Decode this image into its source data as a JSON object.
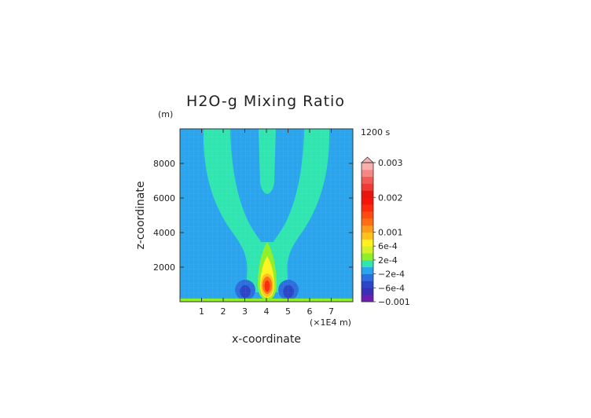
{
  "chart_data": {
    "type": "heatmap",
    "title": "H2O-g Mixing Ratio",
    "xlabel": "x-coordinate",
    "ylabel": "z-coordinate",
    "x_unit": "(×1E4 m)",
    "y_unit": "(m)",
    "time_label": "1200 s",
    "xlim": [
      0,
      8
    ],
    "ylim": [
      0,
      10000
    ],
    "x_ticks": [
      1,
      2,
      3,
      4,
      5,
      6,
      7
    ],
    "x_tick_labels": [
      "1",
      "2",
      "3",
      "4",
      "5",
      "6",
      "7"
    ],
    "y_ticks": [
      2000,
      4000,
      6000,
      8000
    ],
    "y_tick_labels": [
      "2000",
      "4000",
      "6000",
      "8000"
    ],
    "colorbar": {
      "min": -0.001,
      "max": 0.003,
      "extend": "max",
      "tick_values": [
        0.003,
        0.002,
        0.001,
        0.0006,
        0.0002,
        -0.0002,
        -0.0006,
        -0.001
      ],
      "tick_labels": [
        "0.003",
        "0.002",
        "0.001",
        "6e-4",
        "2e-4",
        "−2e-4",
        "−6e-4",
        "−0.001"
      ],
      "levels": [
        {
          "from": -0.001,
          "to": -0.0008,
          "color": "#6a1fb0"
        },
        {
          "from": -0.0008,
          "to": -0.0006,
          "color": "#3b2fb8"
        },
        {
          "from": -0.0006,
          "to": -0.0004,
          "color": "#2a45c8"
        },
        {
          "from": -0.0004,
          "to": -0.0002,
          "color": "#2b6fdc"
        },
        {
          "from": -0.0002,
          "to": 0.0,
          "color": "#2aa4ee"
        },
        {
          "from": 0.0,
          "to": 0.0002,
          "color": "#2fe6b0"
        },
        {
          "from": 0.0002,
          "to": 0.0004,
          "color": "#8ef02a"
        },
        {
          "from": 0.0004,
          "to": 0.0006,
          "color": "#d8f026"
        },
        {
          "from": 0.0006,
          "to": 0.0008,
          "color": "#fff21e"
        },
        {
          "from": 0.0008,
          "to": 0.001,
          "color": "#ffc21c"
        },
        {
          "from": 0.001,
          "to": 0.0012,
          "color": "#ff9a1a"
        },
        {
          "from": 0.0012,
          "to": 0.0014,
          "color": "#ff6e14"
        },
        {
          "from": 0.0014,
          "to": 0.0016,
          "color": "#ff4a10"
        },
        {
          "from": 0.0016,
          "to": 0.0018,
          "color": "#ff2a0c"
        },
        {
          "from": 0.0018,
          "to": 0.002,
          "color": "#f5140a"
        },
        {
          "from": 0.002,
          "to": 0.0022,
          "color": "#e8140e"
        },
        {
          "from": 0.0022,
          "to": 0.0024,
          "color": "#f03a36"
        },
        {
          "from": 0.0024,
          "to": 0.0026,
          "color": "#f25a56"
        },
        {
          "from": 0.0026,
          "to": 0.0028,
          "color": "#f58682"
        },
        {
          "from": 0.0028,
          "to": 0.003,
          "color": "#f7b0ae"
        }
      ]
    },
    "field_features": [
      {
        "name": "background",
        "value": -0.0001
      },
      {
        "name": "v-plume-outer",
        "value": 0.0001,
        "x_range": [
          1.1,
          6.9
        ],
        "z_range": [
          500,
          10000
        ]
      },
      {
        "name": "inner-channel",
        "value": -0.0001,
        "x_center": 4.0,
        "z_range": [
          6200,
          10000
        ]
      },
      {
        "name": "core",
        "value": 0.0017,
        "x_center": 4.0,
        "z_center": 900
      },
      {
        "name": "drying-left",
        "value": -0.0004,
        "x_center": 3.0,
        "z_center": 650
      },
      {
        "name": "drying-right",
        "value": -0.0004,
        "x_center": 5.0,
        "z_center": 650
      },
      {
        "name": "surface-layer",
        "value": 0.0003,
        "z_range": [
          0,
          100
        ]
      }
    ]
  }
}
